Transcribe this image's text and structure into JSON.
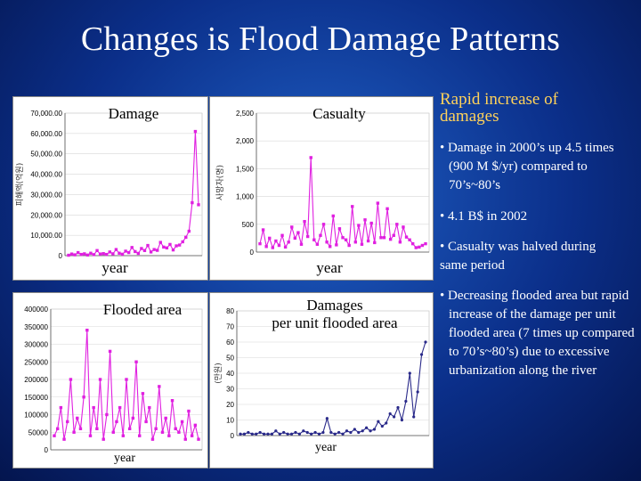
{
  "title": "Changes is Flood Damage Patterns",
  "panels": {
    "damage": {
      "label": "Damage",
      "xlabel": "year",
      "ylabel": "피해액(억원)"
    },
    "casualty": {
      "label": "Casualty",
      "xlabel": "year",
      "ylabel": "사망자(명)"
    },
    "flooded": {
      "label": "Flooded area",
      "xlabel": "year"
    },
    "per_unit": {
      "label_line1": "Damages",
      "label_line2": "per unit flooded area",
      "xlabel": "year",
      "ylabel": "(만원)"
    }
  },
  "bullets": {
    "heading": "Rapid increase of damages",
    "items": [
      "• Damage in 2000’s up 4.5 times (900 M $/yr) compared to 70’s~80’s",
      "• 4.1 B$ in 2002",
      "• Casualty was halved during same period",
      "• Decreasing flooded area but rapid increase of the damage per unit flooded area (7 times up compared to 70’s~80’s) due to excessive urbanization along the river"
    ]
  },
  "colors": {
    "series": "#e020e0",
    "series_dark": "#2a2a8a",
    "heading": "#ffd25a"
  },
  "chart_data": [
    {
      "type": "line",
      "title": "Damage",
      "xlabel": "year",
      "ylabel": "피해액(억원)",
      "ylim": [
        0,
        70000
      ],
      "y_ticks": [
        0,
        10000,
        20000,
        30000,
        40000,
        50000,
        60000,
        70000
      ],
      "y_tick_labels": [
        "0",
        "10,000.00",
        "20,000.00",
        "30,000.00",
        "40,000.00",
        "50,000.00",
        "60,000.00",
        "70,000.00"
      ],
      "values": [
        200,
        800,
        400,
        1500,
        600,
        900,
        300,
        1200,
        500,
        2500,
        800,
        1000,
        600,
        1800,
        900,
        3000,
        1200,
        700,
        2200,
        1500,
        4000,
        2000,
        1100,
        3500,
        2500,
        5000,
        1800,
        3000,
        2600,
        6500,
        4200,
        3800,
        5500,
        2800,
        4800,
        5200,
        6800,
        9000,
        12000,
        26000,
        61000,
        25000
      ]
    },
    {
      "type": "line",
      "title": "Casualty",
      "xlabel": "year",
      "ylabel": "사망자(명)",
      "ylim": [
        0,
        2500
      ],
      "y_ticks": [
        0,
        500,
        1000,
        1500,
        2000,
        2500
      ],
      "y_tick_labels": [
        "0",
        "500",
        "1,000",
        "1,500",
        "2,000",
        "2,500"
      ],
      "values": [
        150,
        400,
        100,
        250,
        80,
        200,
        120,
        300,
        90,
        180,
        450,
        250,
        350,
        140,
        550,
        280,
        1700,
        220,
        140,
        300,
        500,
        180,
        100,
        650,
        130,
        420,
        260,
        220,
        120,
        820,
        180,
        480,
        140,
        580,
        200,
        520,
        170,
        880,
        260,
        260,
        780,
        230,
        300,
        500,
        180,
        450,
        270,
        220,
        150,
        80,
        90,
        120,
        150
      ]
    },
    {
      "type": "line",
      "title": "Flooded area",
      "xlabel": "year",
      "ylim": [
        0,
        400000
      ],
      "y_ticks": [
        0,
        50000,
        100000,
        150000,
        200000,
        250000,
        300000,
        350000,
        400000
      ],
      "y_tick_labels": [
        "0",
        "50000",
        "100000",
        "150000",
        "200000",
        "250000",
        "300000",
        "350000",
        "400000"
      ],
      "values": [
        40000,
        60000,
        120000,
        30000,
        80000,
        200000,
        50000,
        90000,
        60000,
        150000,
        340000,
        40000,
        120000,
        60000,
        200000,
        30000,
        100000,
        280000,
        50000,
        80000,
        120000,
        40000,
        200000,
        60000,
        90000,
        250000,
        40000,
        160000,
        80000,
        120000,
        30000,
        60000,
        180000,
        50000,
        90000,
        40000,
        140000,
        60000,
        50000,
        80000,
        30000,
        110000,
        40000,
        70000,
        30000
      ]
    },
    {
      "type": "line",
      "title": "Damages per unit flooded area",
      "xlabel": "year",
      "ylabel": "(만원)",
      "ylim": [
        0,
        80
      ],
      "y_ticks": [
        0,
        10,
        20,
        30,
        40,
        50,
        60,
        70,
        80
      ],
      "y_tick_labels": [
        "0",
        "10",
        "20",
        "30",
        "40",
        "50",
        "60",
        "70",
        "80"
      ],
      "values": [
        1,
        1,
        2,
        1,
        1,
        2,
        1,
        1,
        1,
        3,
        1,
        2,
        1,
        1,
        2,
        1,
        3,
        2,
        1,
        2,
        1,
        2,
        11,
        2,
        1,
        2,
        1,
        3,
        2,
        4,
        2,
        3,
        5,
        3,
        4,
        9,
        6,
        8,
        14,
        12,
        18,
        10,
        22,
        40,
        12,
        28,
        52,
        60
      ]
    }
  ]
}
